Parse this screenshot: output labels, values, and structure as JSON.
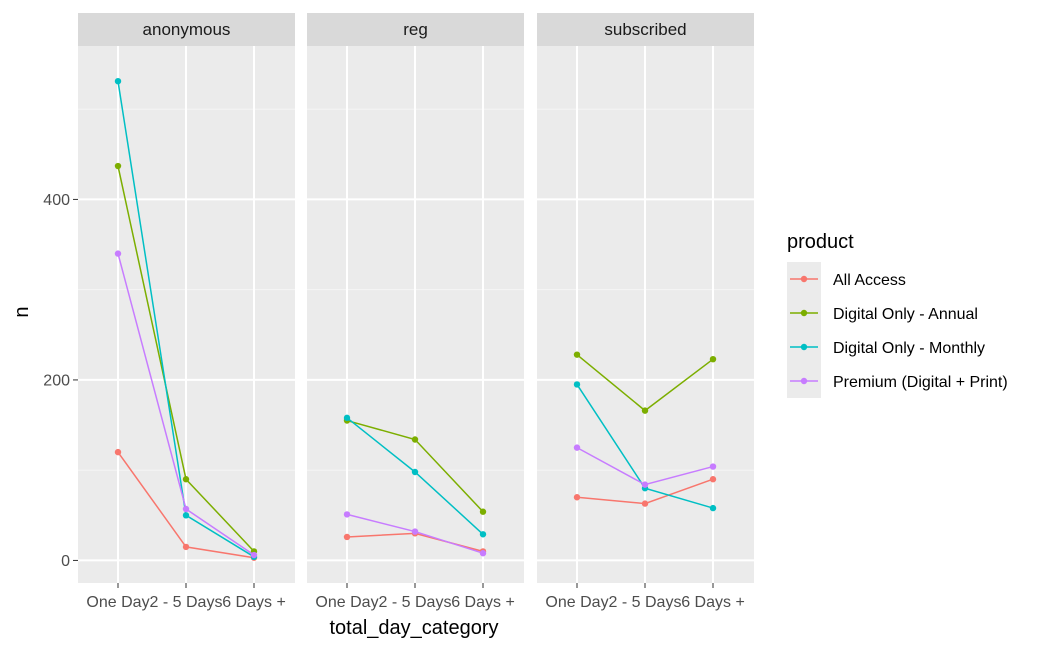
{
  "chart_data": {
    "type": "line",
    "facet_variable": "",
    "facets": [
      "anonymous",
      "reg",
      "subscribed"
    ],
    "categories": [
      "One Day",
      "2 - 5 Days",
      "6 Days +"
    ],
    "xlabel": "total_day_category",
    "ylabel": "n",
    "ylim": [
      -25,
      570
    ],
    "yticks": [
      0,
      200,
      400
    ],
    "grid": true,
    "legend": {
      "title": "product",
      "position": "right"
    },
    "series": [
      {
        "name": "All Access",
        "color": "#F8766D",
        "values": {
          "anonymous": [
            120,
            15,
            3
          ],
          "reg": [
            26,
            30,
            10
          ],
          "subscribed": [
            70,
            63,
            90
          ]
        }
      },
      {
        "name": "Digital Only - Annual",
        "color": "#7CAE00",
        "values": {
          "anonymous": [
            437,
            90,
            10
          ],
          "reg": [
            155,
            134,
            54
          ],
          "subscribed": [
            228,
            166,
            223
          ]
        }
      },
      {
        "name": "Digital Only - Monthly",
        "color": "#00BFC4",
        "values": {
          "anonymous": [
            531,
            50,
            4
          ],
          "reg": [
            158,
            98,
            29
          ],
          "subscribed": [
            195,
            80,
            58
          ]
        }
      },
      {
        "name": "Premium (Digital + Print)",
        "color": "#C77CFF",
        "values": {
          "anonymous": [
            340,
            57,
            6
          ],
          "reg": [
            51,
            32,
            8
          ],
          "subscribed": [
            125,
            84,
            104
          ]
        }
      }
    ]
  }
}
